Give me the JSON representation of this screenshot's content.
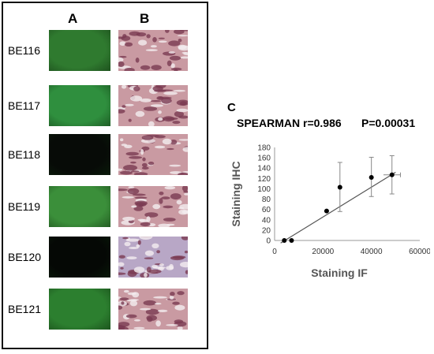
{
  "panel_a": {
    "label": "A"
  },
  "panel_b": {
    "label": "B"
  },
  "panel_c": {
    "label": "C"
  },
  "samples": [
    "BE116",
    "BE117",
    "BE118",
    "BE119",
    "BE120",
    "BE121"
  ],
  "if_images": [
    {
      "tone": "#2f7a2f"
    },
    {
      "tone": "#2f8f3e"
    },
    {
      "tone": "#070b07"
    },
    {
      "tone": "#3b8f3a"
    },
    {
      "tone": "#050805"
    },
    {
      "tone": "#2c7f2f"
    }
  ],
  "stats": {
    "spearman": "SPEARMAN r=0.986",
    "p": "P=0.00031"
  },
  "chart_data": {
    "type": "scatter",
    "xlabel": "Staining IF",
    "ylabel": "Staining IHC",
    "xlim": [
      0,
      60000
    ],
    "ylim": [
      0,
      180
    ],
    "xticks": [
      "0",
      "20000",
      "40000",
      "60000"
    ],
    "yticks": [
      "0",
      "20",
      "40",
      "60",
      "80",
      "100",
      "120",
      "140",
      "160",
      "180"
    ],
    "points": [
      {
        "x": 4000,
        "y": 0
      },
      {
        "x": 7000,
        "y": 0
      },
      {
        "x": 21500,
        "y": 57
      },
      {
        "x": 27000,
        "y": 103,
        "yerr": [
          47,
          48
        ]
      },
      {
        "x": 40000,
        "y": 122,
        "yerr": [
          37,
          39
        ]
      },
      {
        "x": 48500,
        "y": 127,
        "yerr": [
          37,
          37
        ],
        "xerr": [
          3500,
          3500
        ]
      }
    ],
    "fit_line": [
      {
        "x": 2500,
        "y": -5
      },
      {
        "x": 50000,
        "y": 132
      }
    ],
    "grid": false
  }
}
